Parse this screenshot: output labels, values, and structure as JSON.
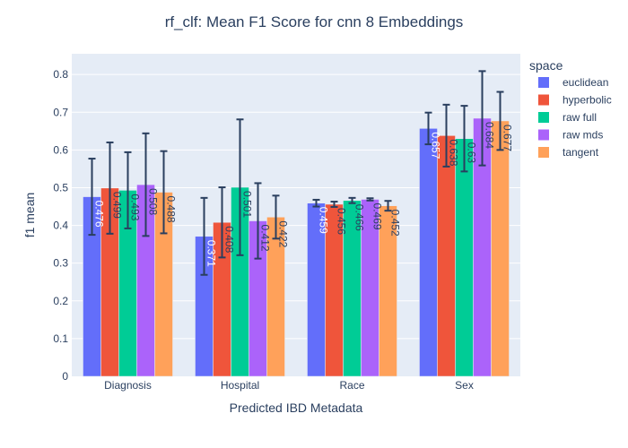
{
  "chart_data": {
    "type": "bar",
    "title": "rf_clf: Mean F1 Score for cnn 8 Embeddings",
    "xlabel": "Predicted IBD Metadata",
    "ylabel": "f1 mean",
    "ylim": [
      0,
      0.855
    ],
    "yticks": [
      0,
      0.1,
      0.2,
      0.3,
      0.4,
      0.5,
      0.6,
      0.7,
      0.8
    ],
    "ytick_labels": [
      "0",
      "0.1",
      "0.2",
      "0.3",
      "0.4",
      "0.5",
      "0.6",
      "0.7",
      "0.8"
    ],
    "grid": true,
    "legend_title": "space",
    "legend_position": "right",
    "categories": [
      "Diagnosis",
      "Hospital",
      "Race",
      "Sex"
    ],
    "series": [
      {
        "name": "euclidean",
        "color": "#636efa",
        "values": [
          0.476,
          0.371,
          0.459,
          0.657
        ],
        "labels": [
          "0.476",
          "0.371",
          "0.459",
          "0.657"
        ],
        "error": [
          0.101,
          0.102,
          0.009,
          0.042
        ]
      },
      {
        "name": "hyperbolic",
        "color": "#ef553b",
        "values": [
          0.499,
          0.408,
          0.456,
          0.638
        ],
        "labels": [
          "0.499",
          "0.408",
          "0.456",
          "0.638"
        ],
        "error": [
          0.121,
          0.093,
          0.007,
          0.082
        ]
      },
      {
        "name": "raw full",
        "color": "#00cc96",
        "values": [
          0.493,
          0.501,
          0.466,
          0.63
        ],
        "labels": [
          "0.493",
          "0.501",
          "0.466",
          "0.63"
        ],
        "error": [
          0.101,
          0.18,
          0.007,
          0.087
        ]
      },
      {
        "name": "raw mds",
        "color": "#ab63fa",
        "values": [
          0.508,
          0.412,
          0.469,
          0.684
        ],
        "labels": [
          "0.508",
          "0.412",
          "0.469",
          "0.684"
        ],
        "error": [
          0.136,
          0.1,
          0.003,
          0.125
        ]
      },
      {
        "name": "tangent",
        "color": "#ffa15a",
        "values": [
          0.488,
          0.422,
          0.452,
          0.677
        ],
        "labels": [
          "0.488",
          "0.422",
          "0.452",
          "0.677"
        ],
        "error": [
          0.109,
          0.057,
          0.013,
          0.077
        ]
      }
    ]
  }
}
